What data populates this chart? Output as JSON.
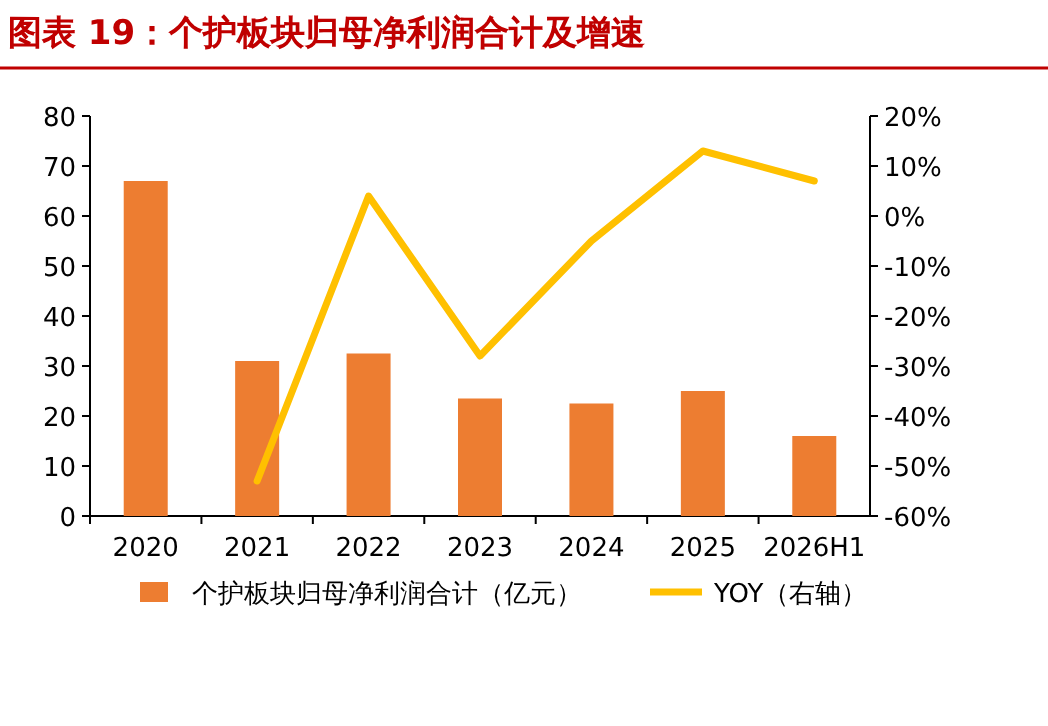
{
  "chart_data": {
    "type": "bar",
    "title": "图表 19：个护板块归母净利润合计及增速",
    "categories": [
      "2020",
      "2021",
      "2022",
      "2023",
      "2024",
      "2025",
      "2026H1"
    ],
    "series": [
      {
        "name": "个护板块归母净利润合计（亿元）",
        "color": "#ed7d31",
        "values": [
          67,
          31,
          32.5,
          23.5,
          22.5,
          25,
          16
        ]
      },
      {
        "name": "YOY（右轴）",
        "type": "line",
        "axis": "y2",
        "color": "#ffc000",
        "values": [
          null,
          -53,
          4,
          -28,
          -5,
          13,
          7
        ]
      }
    ],
    "ylim": [
      0,
      80
    ],
    "yticks": [
      0,
      10,
      20,
      30,
      40,
      50,
      60,
      70,
      80
    ],
    "y2lim": [
      -60,
      20
    ],
    "y2ticks": [
      {
        "value": -60,
        "label": "-60%"
      },
      {
        "value": -50,
        "label": "-50%"
      },
      {
        "value": -40,
        "label": "-40%"
      },
      {
        "value": -30,
        "label": "-30%"
      },
      {
        "value": -20,
        "label": "-20%"
      },
      {
        "value": -10,
        "label": "-10%"
      },
      {
        "value": 0,
        "label": "0%"
      },
      {
        "value": 10,
        "label": "10%"
      },
      {
        "value": 20,
        "label": "20%"
      }
    ],
    "legend": "bottom"
  }
}
